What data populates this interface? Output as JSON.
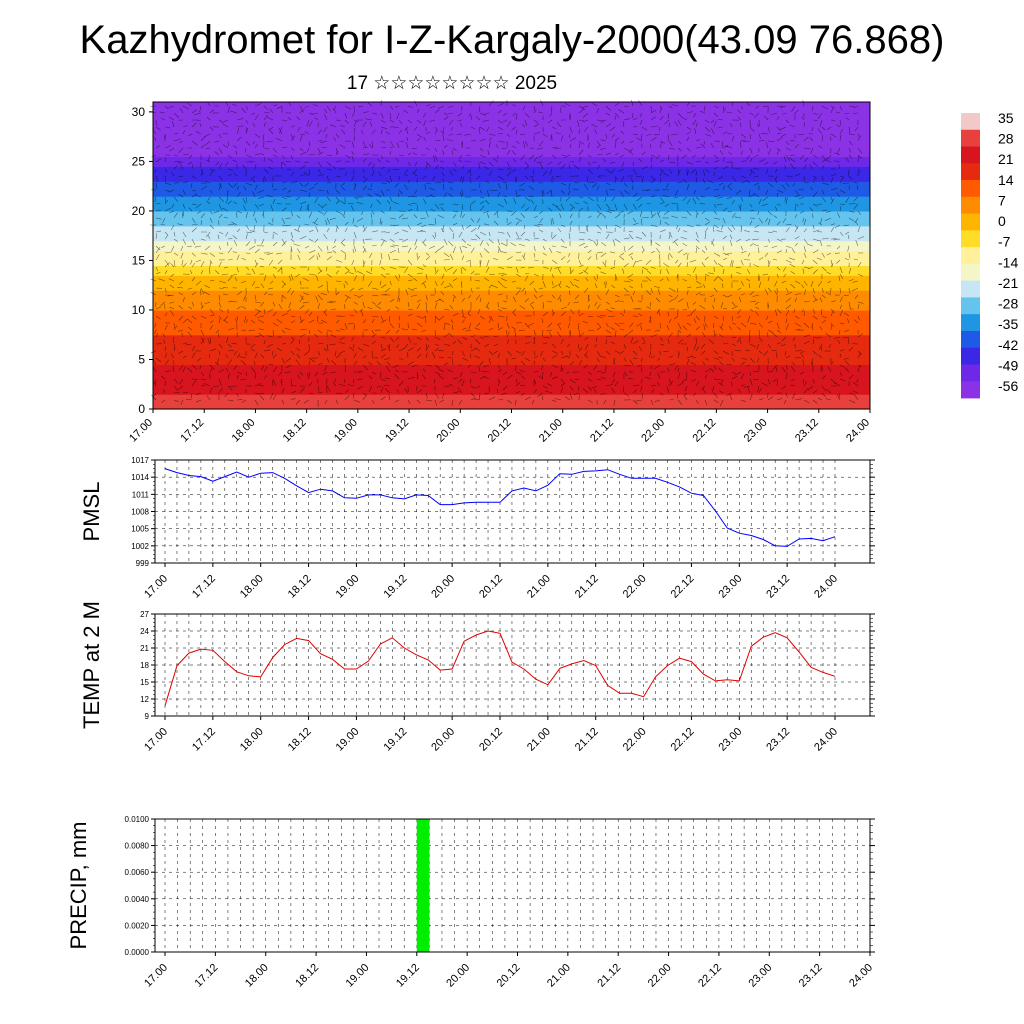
{
  "header": {
    "title": "Kazhydromet for I-Z-Kargaly-2000(43.09 76.868)",
    "subtitle": "17 ☆☆☆☆☆☆☆☆ 2025"
  },
  "colors": {
    "pmsl_line": "#0000ff",
    "temp_line": "#e00000",
    "precip_bar": "#00ee00",
    "grid": "#000000"
  },
  "chart_data": [
    {
      "type": "heatmap",
      "id": "cross-section",
      "x_ticks": [
        "17.00",
        "17.12",
        "18.00",
        "18.12",
        "19.00",
        "19.12",
        "20.00",
        "20.12",
        "21.00",
        "21.12",
        "22.00",
        "22.12",
        "23.00",
        "23.12",
        "24.00"
      ],
      "ylim": [
        0,
        31
      ],
      "y_ticks": [
        0,
        5,
        10,
        15,
        20,
        25,
        30
      ],
      "colorbar": {
        "labels": [
          "35",
          "28",
          "21",
          "14",
          "7",
          "0",
          "-7",
          "-14",
          "-21",
          "-28",
          "-35",
          "-42",
          "-49",
          "-56"
        ],
        "colors": [
          "#f2c8c8",
          "#e8403c",
          "#d8141e",
          "#e62a10",
          "#ff5a00",
          "#ff8c00",
          "#ffb400",
          "#ffdc28",
          "#fff09a",
          "#f4f6c8",
          "#c6e6f4",
          "#64c4ee",
          "#1e96e4",
          "#1e5ae6",
          "#3a28e6",
          "#6e28e8",
          "#8c32e6"
        ]
      },
      "temperature_profile": [
        [
          0,
          30
        ],
        [
          2,
          25
        ],
        [
          5,
          20
        ],
        [
          8,
          14
        ],
        [
          11,
          7
        ],
        [
          13,
          0
        ],
        [
          14.5,
          -7
        ],
        [
          16,
          -14
        ],
        [
          17,
          -21
        ],
        [
          19,
          -28
        ],
        [
          21,
          -35
        ],
        [
          23,
          -42
        ],
        [
          24.5,
          -49
        ],
        [
          26,
          -56
        ],
        [
          31,
          -60
        ]
      ]
    },
    {
      "type": "line",
      "id": "pmsl",
      "ylabel": "PMSL",
      "ylim": [
        999,
        1017
      ],
      "y_ticks": [
        999,
        1002,
        1005,
        1008,
        1011,
        1014,
        1017
      ],
      "x_ticks": [
        "17.00",
        "17.12",
        "18.00",
        "18.12",
        "19.00",
        "19.12",
        "20.00",
        "20.12",
        "21.00",
        "21.12",
        "22.00",
        "22.12",
        "23.00",
        "23.12",
        "24.00"
      ],
      "x_step_hours": 3,
      "values": [
        1015.5,
        1014.8,
        1014.3,
        1014.1,
        1013.3,
        1014.1,
        1014.9,
        1014.0,
        1014.7,
        1014.8,
        1013.8,
        1012.5,
        1011.3,
        1011.9,
        1011.6,
        1010.4,
        1010.3,
        1010.9,
        1010.9,
        1010.4,
        1010.2,
        1010.9,
        1010.8,
        1009.2,
        1009.2,
        1009.5,
        1009.6,
        1009.6,
        1009.6,
        1011.6,
        1012.1,
        1011.6,
        1012.6,
        1014.6,
        1014.5,
        1015.0,
        1015.1,
        1015.3,
        1014.5,
        1013.8,
        1013.8,
        1013.8,
        1013.1,
        1012.3,
        1011.2,
        1010.8,
        1008.1,
        1005.1,
        1004.2,
        1003.8,
        1003.1,
        1002.0,
        1001.9,
        1003.2,
        1003.3,
        1002.9,
        1003.6
      ]
    },
    {
      "type": "line",
      "id": "temp2m",
      "ylabel": "TEMP at 2 M",
      "ylim": [
        9,
        27
      ],
      "y_ticks": [
        9,
        12,
        15,
        18,
        21,
        24,
        27
      ],
      "x_ticks": [
        "17.00",
        "17.12",
        "18.00",
        "18.12",
        "19.00",
        "19.12",
        "20.00",
        "20.12",
        "21.00",
        "21.12",
        "22.00",
        "22.12",
        "23.00",
        "23.12",
        "24.00"
      ],
      "x_step_hours": 3,
      "values": [
        10.8,
        17.9,
        20.1,
        20.8,
        20.6,
        18.6,
        16.8,
        16.1,
        15.9,
        19.3,
        21.6,
        22.7,
        22.3,
        20.0,
        19.0,
        17.3,
        17.3,
        18.7,
        21.7,
        22.8,
        21.0,
        19.8,
        18.9,
        17.1,
        17.3,
        22.2,
        23.3,
        24.0,
        23.6,
        18.5,
        17.3,
        15.5,
        14.5,
        17.4,
        18.2,
        18.8,
        17.9,
        14.4,
        13.0,
        13.0,
        12.4,
        15.9,
        17.9,
        19.2,
        18.6,
        16.4,
        15.2,
        15.4,
        15.2,
        21.3,
        22.9,
        23.7,
        22.8,
        20.3,
        17.6,
        16.7,
        16.0
      ]
    },
    {
      "type": "bar",
      "id": "precip",
      "ylabel": "PRECIP, mm",
      "ylim": [
        0,
        0.01
      ],
      "y_tick_labels": [
        "0.0000",
        "0.0020",
        "0.0040",
        "0.0060",
        "0.0080",
        "0.0100"
      ],
      "x_ticks": [
        "17.00",
        "17.12",
        "18.00",
        "18.12",
        "19.00",
        "19.12",
        "20.00",
        "20.12",
        "21.00",
        "21.12",
        "22.00",
        "22.12",
        "23.00",
        "23.12",
        "24.00"
      ],
      "bars": [
        {
          "start_hour": 60,
          "end_hour": 63,
          "value": 0.01
        }
      ]
    }
  ]
}
